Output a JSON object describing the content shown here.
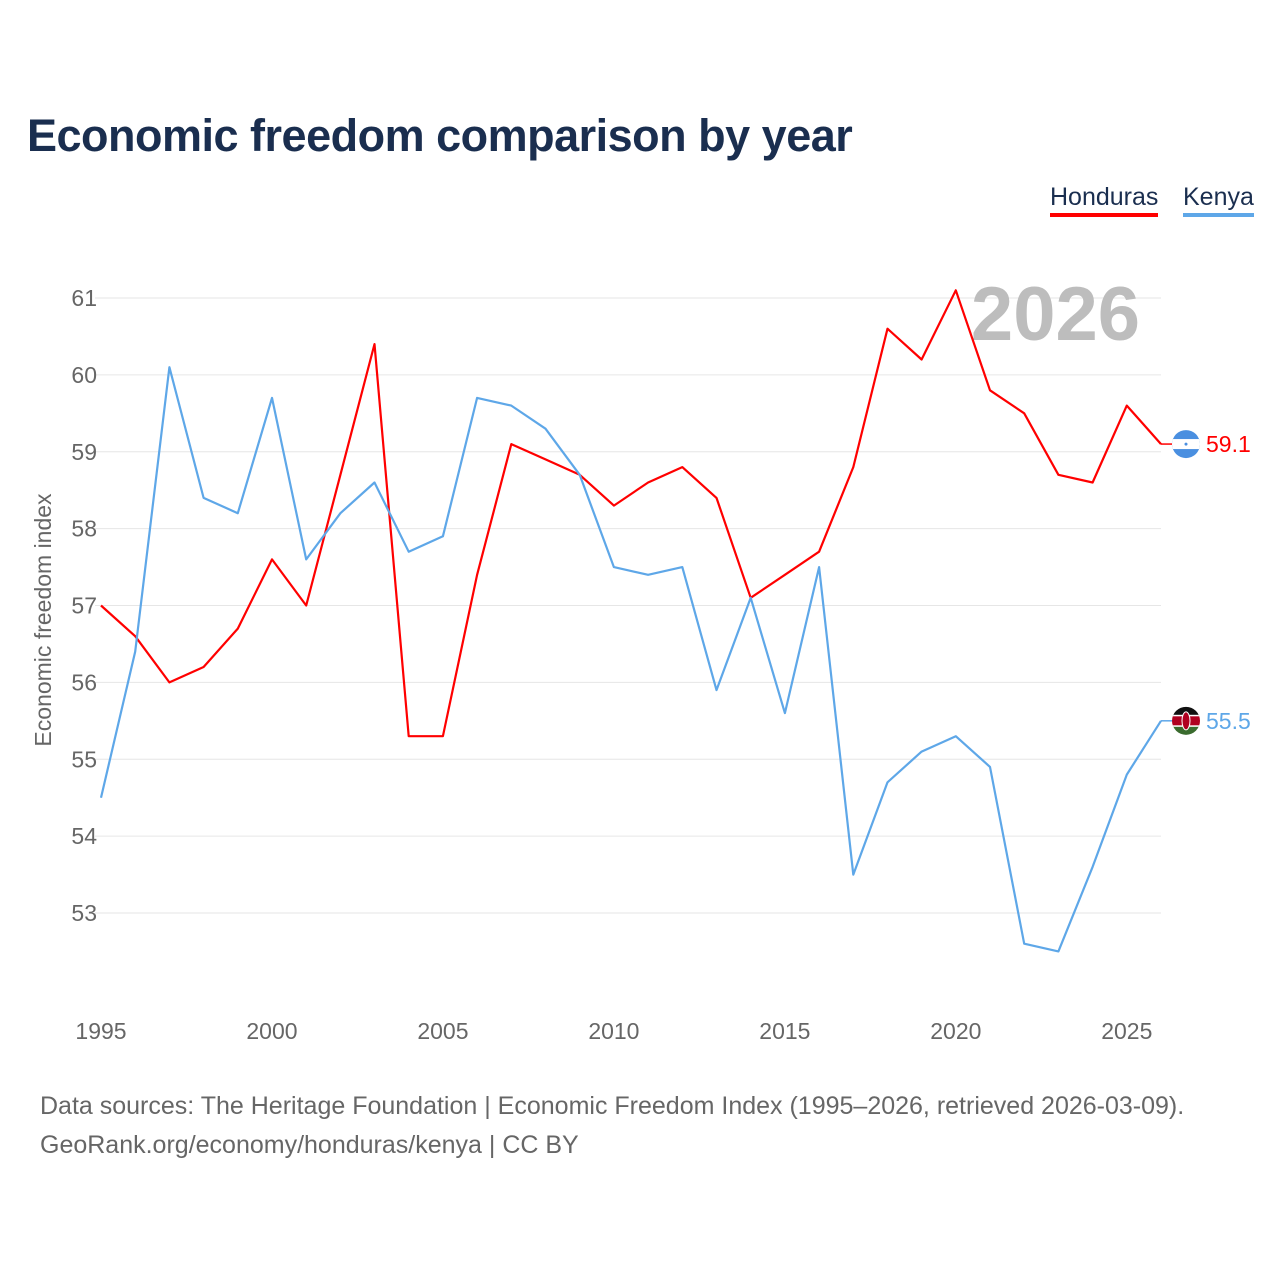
{
  "title": "Economic freedom comparison by year",
  "legend": [
    {
      "name": "Honduras",
      "color": "#ff0000"
    },
    {
      "name": "Kenya",
      "color": "#5ea7e8"
    }
  ],
  "year_watermark": "2026",
  "source_line1": "Data sources: The Heritage Foundation | Economic Freedom Index (1995–2026, retrieved 2026-03-09).",
  "source_line2": "GeoRank.org/economy/honduras/kenya | CC BY",
  "chart_data": {
    "type": "line",
    "title": "Economic freedom comparison by year",
    "xlabel": "",
    "ylabel": "Economic freedom index",
    "x": [
      1995,
      1996,
      1997,
      1998,
      1999,
      2000,
      2001,
      2002,
      2003,
      2004,
      2005,
      2006,
      2007,
      2008,
      2009,
      2010,
      2011,
      2012,
      2013,
      2014,
      2015,
      2016,
      2017,
      2018,
      2019,
      2020,
      2021,
      2022,
      2023,
      2024,
      2025,
      2026
    ],
    "xticks": [
      1995,
      2000,
      2005,
      2010,
      2015,
      2020,
      2025
    ],
    "yticks": [
      53,
      54,
      55,
      56,
      57,
      58,
      59,
      60,
      61
    ],
    "xlim": [
      1995,
      2026
    ],
    "ylim": [
      51.9,
      61.4
    ],
    "grid": true,
    "legend_position": "top-right",
    "series": [
      {
        "name": "Honduras",
        "color": "#ff0000",
        "end_label": "59.1",
        "values": [
          57.0,
          56.6,
          56.0,
          56.2,
          56.7,
          57.6,
          57.0,
          58.7,
          60.4,
          55.3,
          55.3,
          57.4,
          59.1,
          58.9,
          58.7,
          58.3,
          58.6,
          58.8,
          58.4,
          57.1,
          57.4,
          57.7,
          58.8,
          60.6,
          60.2,
          61.1,
          59.8,
          59.5,
          58.7,
          58.6,
          59.6,
          59.1
        ]
      },
      {
        "name": "Kenya",
        "color": "#5ea7e8",
        "end_label": "55.5",
        "values": [
          54.5,
          56.4,
          60.1,
          58.4,
          58.2,
          59.7,
          57.6,
          58.2,
          58.6,
          57.7,
          57.9,
          59.7,
          59.6,
          59.3,
          58.7,
          57.5,
          57.4,
          57.5,
          55.9,
          57.1,
          55.6,
          57.5,
          53.5,
          54.7,
          55.1,
          55.3,
          54.9,
          52.6,
          52.5,
          53.6,
          54.8,
          55.5
        ]
      }
    ]
  }
}
